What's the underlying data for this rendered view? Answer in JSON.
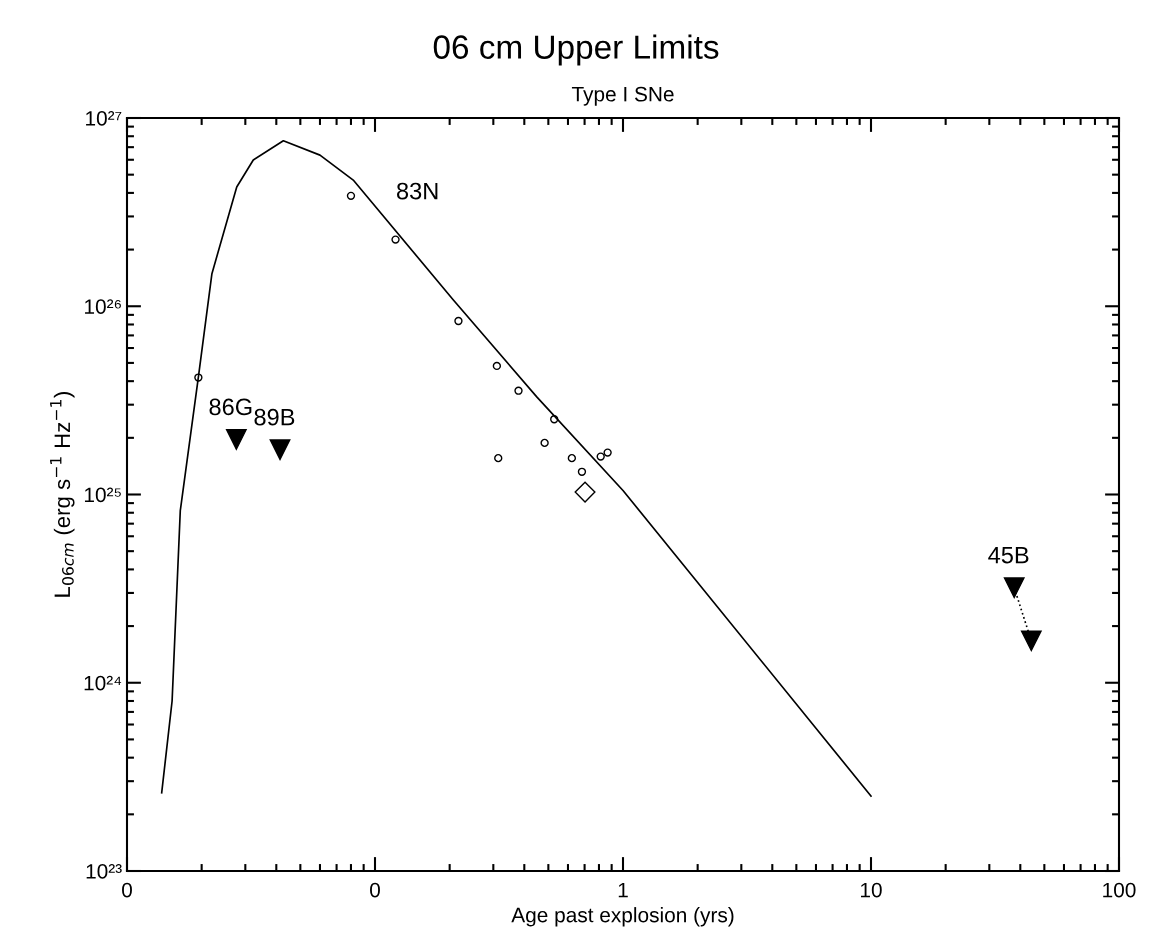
{
  "chart_data": {
    "type": "scatter",
    "title": "06 cm Upper Limits",
    "subtitle": "Type I SNe",
    "xlabel": "Age past explosion (yrs)",
    "ylabel": "L$_{06cm}$ (erg s$^{−1}$ Hz$^{−1}$)",
    "log": "xy",
    "grid": false,
    "legend": false,
    "xlim": [
      0.01,
      100
    ],
    "ylim": [
      1e+23,
      1e+27
    ],
    "xticks": [
      {
        "value": 0.01,
        "label": "0"
      },
      {
        "value": 0.1,
        "label": "0"
      },
      1,
      10,
      100
    ],
    "yticks": [
      {
        "value": 1e+23,
        "label": "10²³"
      },
      {
        "value": 1e+24,
        "label": "10²⁴"
      },
      {
        "value": 1e+25,
        "label": "10²⁵"
      },
      {
        "value": 1e+26,
        "label": "10²⁶"
      },
      {
        "value": 1e+27,
        "label": "10²⁷"
      }
    ],
    "series": [
      {
        "type": "line",
        "color": "#000000",
        "line_style": "solid",
        "marker": "none",
        "x": [
          0.0138,
          0.0152,
          0.0164,
          0.0194,
          0.022,
          0.0277,
          0.0323,
          0.0427,
          0.06,
          0.0817,
          0.207,
          0.449,
          1,
          10
        ],
        "values": [
          2.6e+23,
          8e+23,
          8.2e+24,
          4.2e+25,
          1.49e+26,
          4.3e+26,
          5.98e+26,
          7.57e+26,
          6.35e+26,
          4.68e+26,
          1.08e+26,
          3.3e+25,
          1.05e+25,
          2.5e+23
        ]
      },
      {
        "name": "83N",
        "color": "#000000",
        "marker": "circle",
        "x": [
          0.0194,
          0.08,
          0.121,
          0.217,
          0.31,
          0.379,
          0.528,
          0.483,
          0.314,
          0.622,
          0.683,
          0.813,
          0.867
        ],
        "values": [
          4.18e+25,
          3.86e+26,
          2.26e+26,
          8.35e+25,
          4.82e+25,
          3.56e+25,
          2.51e+25,
          1.88e+25,
          1.56e+25,
          1.56e+25,
          1.32e+25,
          1.59e+25,
          1.67e+25
        ]
      },
      {
        "color": "#000000",
        "marker": "diamond",
        "x": [
          0.703
        ],
        "values": [
          1.03e+25
        ]
      },
      {
        "name": "86G",
        "color": "#000000",
        "marker": "triangle",
        "x": [
          0.0276
        ],
        "values": [
          1.96e+25
        ]
      },
      {
        "name": "89B",
        "color": "#000000",
        "marker": "triangle",
        "x": [
          0.0414
        ],
        "values": [
          1.73e+25
        ]
      },
      {
        "name": "45B",
        "type": "line",
        "color": "#000000",
        "line_style": "dotted",
        "marker": "triangle",
        "x": [
          37.8,
          44.3
        ],
        "values": [
          3.2e+24,
          1.67e+24
        ]
      }
    ]
  }
}
